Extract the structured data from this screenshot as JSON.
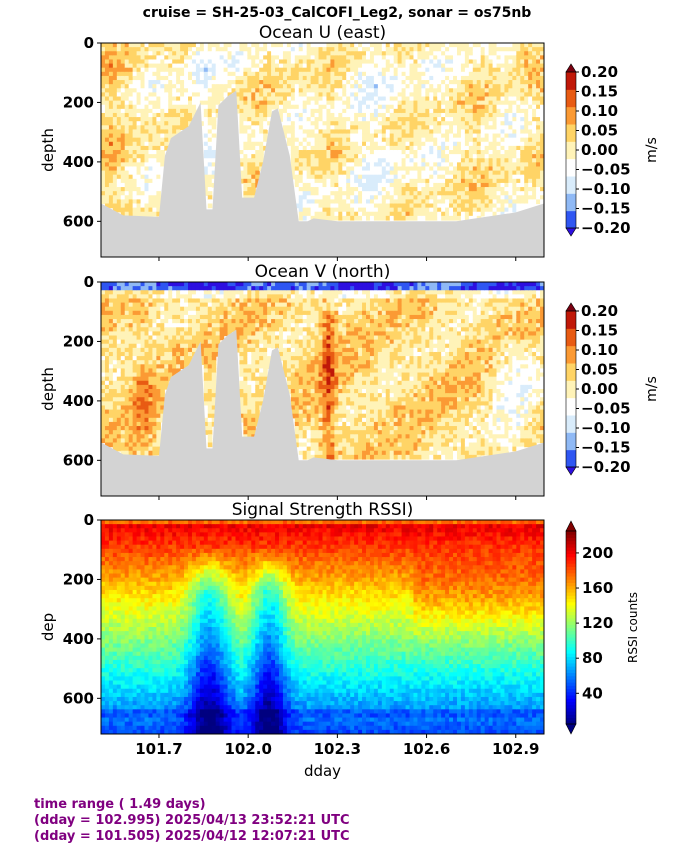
{
  "suptitle": "cruise = SH-25-03_CalCOFI_Leg2,  sonar = os75nb",
  "footer": {
    "line1": "time range ( 1.49 days)",
    "line2": "(dday = 102.995) 2025/04/13 23:52:21 UTC",
    "line3": "(dday = 101.505) 2025/04/12 12:07:21 UTC"
  },
  "chart_data": [
    {
      "type": "heatmap",
      "title": "Ocean U (east)",
      "ylabel": "depth",
      "xlim": [
        101.505,
        102.995
      ],
      "ylim": [
        720,
        0
      ],
      "yticks": [
        "0",
        "200",
        "400",
        "600"
      ],
      "ytick_values": [
        0,
        200,
        400,
        600
      ],
      "colorbar": {
        "label": "m/s",
        "ticks": [
          "0.20",
          "0.15",
          "0.10",
          "0.05",
          "0.00",
          "−0.05",
          "−0.10",
          "−0.15",
          "−0.20"
        ],
        "range": [
          -0.2,
          0.2
        ],
        "colors": [
          "#2d0fe0",
          "#2f56f2",
          "#8fb9f5",
          "#d9ecfb",
          "#ffffff",
          "#fff3b8",
          "#ffd466",
          "#fb9a34",
          "#e85b13",
          "#c01808",
          "#7a0010"
        ]
      },
      "mask_color": "#d3d3d3",
      "bottom_depth_profile": {
        "dday": [
          101.505,
          101.58,
          101.7,
          101.72,
          101.74,
          101.8,
          101.84,
          101.86,
          101.88,
          101.9,
          101.93,
          101.96,
          101.98,
          102.02,
          102.05,
          102.08,
          102.1,
          102.14,
          102.17,
          102.2,
          102.22,
          102.3,
          102.5,
          102.7,
          102.9,
          102.995
        ],
        "depth": [
          540,
          580,
          585,
          380,
          320,
          280,
          200,
          560,
          560,
          210,
          180,
          160,
          520,
          520,
          400,
          230,
          220,
          380,
          600,
          600,
          590,
          600,
          600,
          600,
          570,
          540
        ]
      }
    },
    {
      "type": "heatmap",
      "title": "Ocean V (north)",
      "ylabel": "depth",
      "xlim": [
        101.505,
        102.995
      ],
      "ylim": [
        720,
        0
      ],
      "yticks": [
        "0",
        "200",
        "400",
        "600"
      ],
      "ytick_values": [
        0,
        200,
        400,
        600
      ],
      "colorbar": {
        "label": "m/s",
        "ticks": [
          "0.20",
          "0.15",
          "0.10",
          "0.05",
          "0.00",
          "−0.05",
          "−0.10",
          "−0.15",
          "−0.20"
        ],
        "range": [
          -0.2,
          0.2
        ],
        "colors": [
          "#2d0fe0",
          "#2f56f2",
          "#8fb9f5",
          "#d9ecfb",
          "#ffffff",
          "#fff3b8",
          "#ffd466",
          "#fb9a34",
          "#e85b13",
          "#c01808",
          "#7a0010"
        ]
      },
      "mask_color": "#d3d3d3",
      "bottom_depth_profile": {
        "dday": [
          101.505,
          101.58,
          101.7,
          101.72,
          101.74,
          101.8,
          101.84,
          101.86,
          101.88,
          101.9,
          101.93,
          101.96,
          101.98,
          102.02,
          102.05,
          102.08,
          102.1,
          102.14,
          102.17,
          102.2,
          102.22,
          102.3,
          102.5,
          102.7,
          102.9,
          102.995
        ],
        "depth": [
          540,
          580,
          585,
          380,
          320,
          280,
          200,
          560,
          560,
          210,
          180,
          160,
          520,
          520,
          400,
          230,
          220,
          380,
          600,
          600,
          590,
          600,
          600,
          600,
          570,
          540
        ]
      }
    },
    {
      "type": "heatmap",
      "title": "Signal Strength RSSI)",
      "ylabel": "dep",
      "xlabel": "dday",
      "xlim": [
        101.505,
        102.995
      ],
      "ylim": [
        720,
        0
      ],
      "yticks": [
        "0",
        "200",
        "400",
        "600"
      ],
      "ytick_values": [
        0,
        200,
        400,
        600
      ],
      "xticks": [
        "101.7",
        "102.0",
        "102.3",
        "102.6",
        "102.9"
      ],
      "xtick_values": [
        101.7,
        102.0,
        102.3,
        102.6,
        102.9
      ],
      "colorbar": {
        "label": "RSSI counts",
        "ticks": [
          "200",
          "160",
          "120",
          "80",
          "40"
        ],
        "tick_values": [
          200,
          160,
          120,
          80,
          40
        ],
        "range": [
          5,
          225
        ],
        "colormap": "jet"
      }
    }
  ]
}
